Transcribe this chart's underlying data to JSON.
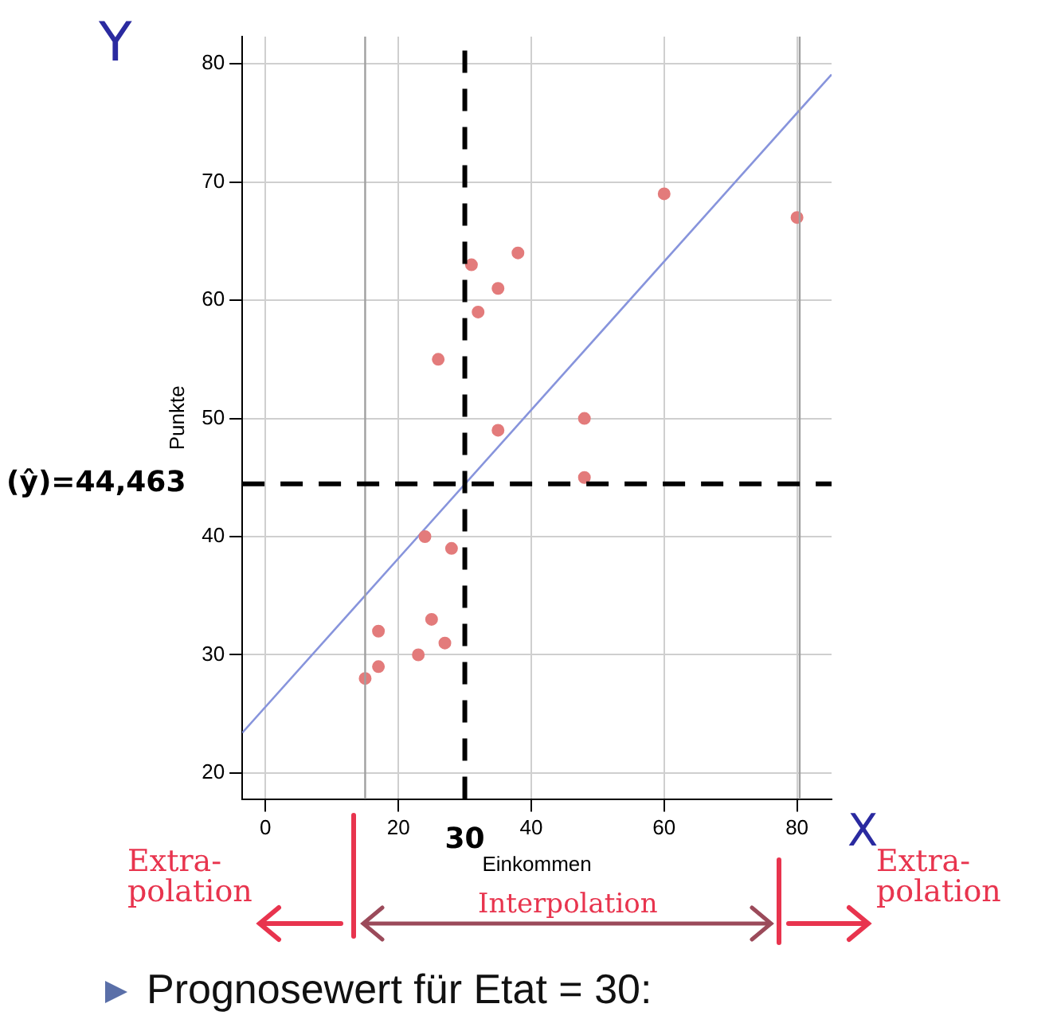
{
  "chart_data": {
    "type": "scatter",
    "xlabel": "Einkommen",
    "ylabel": "Punkte",
    "annotations": [
      "Y",
      "X",
      "Extra-polation",
      "Interpolation",
      "Extra-polation",
      "Prognosewert für Etat = 30:"
    ],
    "xlim": [
      -3.5,
      85.2
    ],
    "ylim": [
      17.8,
      82.3
    ],
    "xticks": [
      0,
      20,
      40,
      60,
      80
    ],
    "yticks": [
      20,
      30,
      40,
      50,
      60,
      70,
      80
    ],
    "grid": true,
    "legend": false,
    "series": [
      {
        "marker": "circle",
        "color": "#e37b7b",
        "x": [
          60,
          80,
          31,
          38,
          35,
          32,
          26,
          48,
          35,
          48,
          24,
          28,
          25,
          17,
          27,
          23,
          17,
          15
        ],
        "values": [
          69,
          67,
          63,
          64,
          61,
          59,
          55,
          50,
          49,
          45,
          40,
          39,
          33,
          32,
          31,
          30,
          29,
          28
        ]
      },
      {
        "type": "line",
        "marker": "none",
        "color": "#8794dc",
        "x": [
          -3.5,
          85.2
        ],
        "values": [
          23.4,
          79.1
        ]
      }
    ],
    "ref_lines": [
      {
        "axis": "x",
        "value": 15,
        "color": "#a0a0a0",
        "line_style": "solid"
      },
      {
        "axis": "x",
        "value": 80.4,
        "color": "#a0a0a0",
        "line_style": "solid"
      },
      {
        "axis": "x",
        "value": 30,
        "label": "30",
        "color": "#000000",
        "line_style": "dashed"
      },
      {
        "axis": "y",
        "value": 44.463,
        "label": "(ŷ)=44,463",
        "color": "#000000",
        "line_style": "dashed"
      }
    ]
  }
}
